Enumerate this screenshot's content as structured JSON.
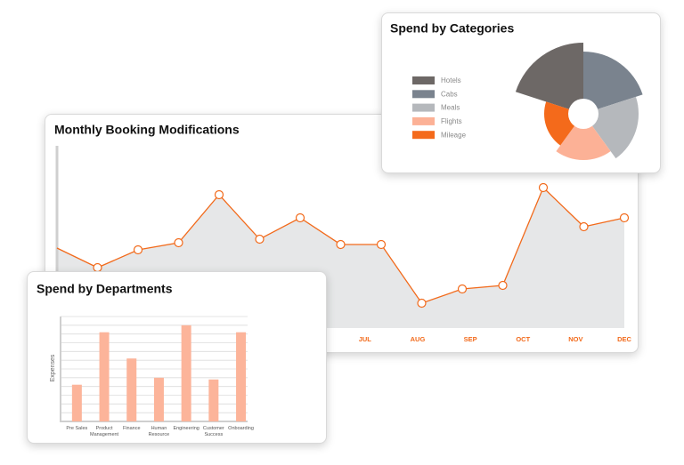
{
  "chart_data": [
    {
      "type": "line",
      "title": "Monthly Booking Modifications",
      "x": [
        0,
        1,
        2,
        3,
        4,
        5,
        6,
        7,
        8,
        9,
        10,
        11,
        12,
        13,
        14
      ],
      "values": [
        45,
        34,
        44,
        48,
        75,
        50,
        62,
        47,
        47,
        14,
        22,
        24,
        79,
        57,
        62
      ],
      "xlim": [
        0,
        14
      ],
      "ylim": [
        0,
        100
      ],
      "xticks": [
        {
          "value": 7.6,
          "label": "JUL"
        },
        {
          "value": 8.9,
          "label": "AUG"
        },
        {
          "value": 10.2,
          "label": "SEP"
        },
        {
          "value": 11.5,
          "label": "OCT"
        },
        {
          "value": 12.8,
          "label": "NOV"
        },
        {
          "value": 14,
          "label": "DEC"
        }
      ],
      "color": "#f26a1b",
      "fill_color": "#e6e7e8",
      "marker_fill": "#ffffff"
    },
    {
      "type": "bar",
      "title": "Spend by Departments",
      "y_label": "Expenses",
      "categories": [
        "Pre Sales",
        "Product Management",
        "Finance",
        "Human Resource",
        "Engineering",
        "Customer Success",
        "Onboarding"
      ],
      "values": [
        42,
        102,
        72,
        50,
        110,
        48,
        102
      ],
      "ylim": [
        0,
        120
      ],
      "yticks": [
        0,
        10,
        20,
        30,
        40,
        50,
        60,
        70,
        80,
        90,
        100,
        110,
        120
      ],
      "tick_labels": false,
      "grid": true,
      "color": "#fcb49a"
    },
    {
      "type": "polar_area",
      "title": "Spend by Categories",
      "start_angle": -72,
      "categories": [
        "Hotels",
        "Cabs",
        "Meals",
        "Flights",
        "Mileage"
      ],
      "values": [
        80,
        70,
        62,
        52,
        44
      ],
      "rlim": [
        0,
        80
      ],
      "colors": [
        "#6d6866",
        "#7a838e",
        "#b5b8bc",
        "#fcb196",
        "#f46a1b"
      ],
      "legend": "left"
    }
  ]
}
